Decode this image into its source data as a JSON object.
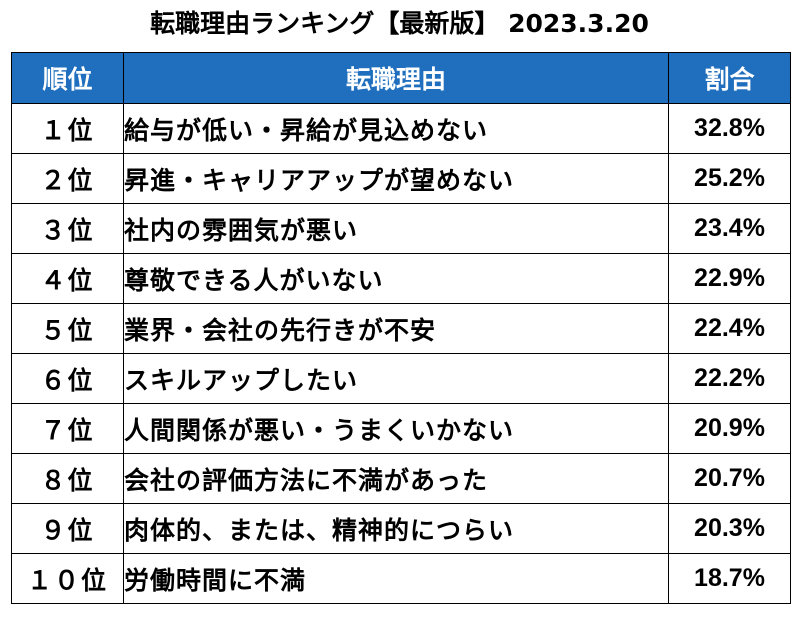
{
  "chart_data": {
    "type": "table",
    "title": "転職理由ランキング【最新版】 2023.3.20",
    "columns": [
      "順位",
      "転職理由",
      "割合"
    ],
    "rows": [
      {
        "rank": "１位",
        "reason": "給与が低い・昇給が見込めない",
        "percent": "32.8%"
      },
      {
        "rank": "２位",
        "reason": "昇進・キャリアアップが望めない",
        "percent": "25.2%"
      },
      {
        "rank": "３位",
        "reason": "社内の雰囲気が悪い",
        "percent": "23.4%"
      },
      {
        "rank": "４位",
        "reason": "尊敬できる人がいない",
        "percent": "22.9%"
      },
      {
        "rank": "５位",
        "reason": "業界・会社の先行きが不安",
        "percent": "22.4%"
      },
      {
        "rank": "６位",
        "reason": "スキルアップしたい",
        "percent": "22.2%"
      },
      {
        "rank": "７位",
        "reason": "人間関係が悪い・うまくいかない",
        "percent": "20.9%"
      },
      {
        "rank": "８位",
        "reason": "会社の評価方法に不満があった",
        "percent": "20.7%"
      },
      {
        "rank": "９位",
        "reason": "肉体的、または、精神的につらい",
        "percent": "20.3%"
      },
      {
        "rank": "１０位",
        "reason": "労働時間に不満",
        "percent": "18.7%"
      }
    ],
    "header_color": "#1f6fbe",
    "header_text_color": "#ffffff"
  }
}
